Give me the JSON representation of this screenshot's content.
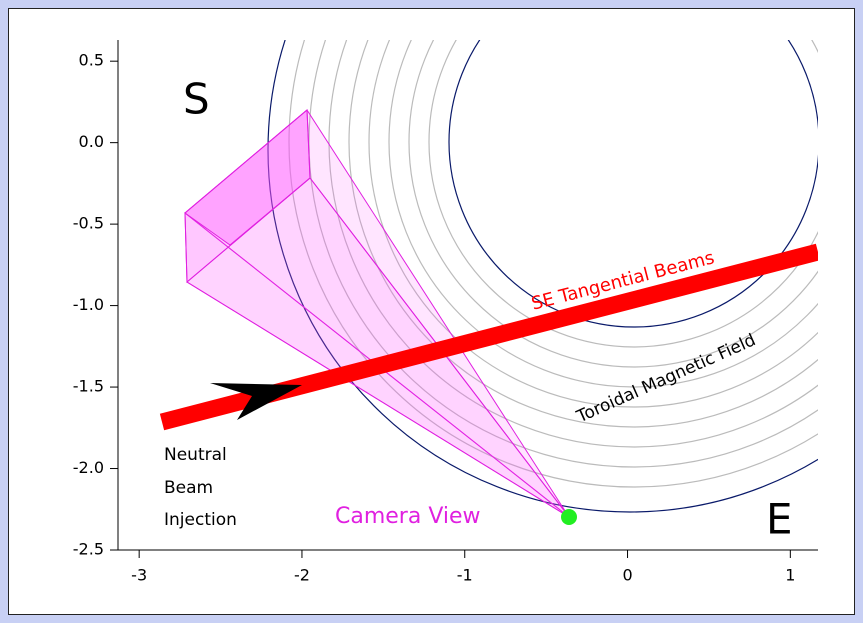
{
  "chart_data": {
    "type": "diagram",
    "xlim": [
      -3.13,
      1.17
    ],
    "ylim": [
      -2.5,
      0.63
    ],
    "xticks": [
      -3,
      -2,
      -1,
      0,
      1
    ],
    "yticks": [
      0.5,
      {
        "value": 0,
        "label": "0.0"
      },
      -0.5,
      {
        "value": -1,
        "label": "-1.0"
      },
      -1.5,
      {
        "value": -2,
        "label": "-2.0"
      },
      -2.5
    ],
    "annotations": {
      "south": "S",
      "east": "E",
      "beams": "SE Tangential Beams",
      "field": "Toroidal Magnetic Field",
      "injection": [
        "Neutral",
        "Beam",
        "Injection"
      ],
      "camera": "Camera View"
    }
  }
}
